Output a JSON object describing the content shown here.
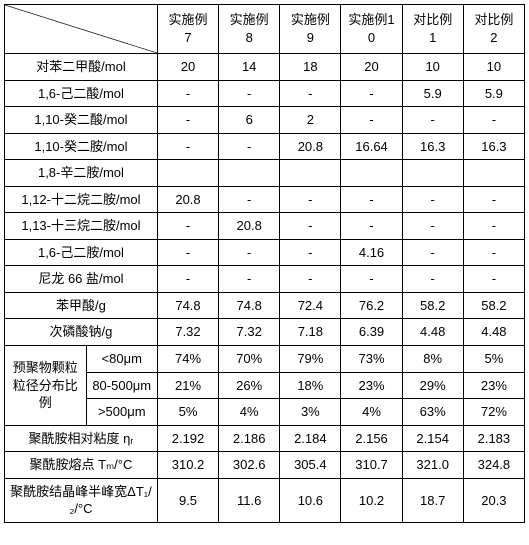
{
  "columns": [
    "实施例7",
    "实施例8",
    "实施例9",
    "实施例10",
    "对比例1",
    "对比例2"
  ],
  "rows": [
    {
      "label": "对苯二甲酸/mol",
      "v": [
        "20",
        "14",
        "18",
        "20",
        "10",
        "10"
      ]
    },
    {
      "label": "1,6-己二酸/mol",
      "v": [
        "-",
        "-",
        "-",
        "-",
        "5.9",
        "5.9"
      ]
    },
    {
      "label": "1,10-癸二酸/mol",
      "v": [
        "-",
        "6",
        "2",
        "-",
        "-",
        "-"
      ]
    },
    {
      "label": "1,10-癸二胺/mol",
      "v": [
        "-",
        "-",
        "20.8",
        "16.64",
        "16.3",
        "16.3"
      ]
    },
    {
      "label": "1,8-辛二胺/mol",
      "v": [
        "",
        "",
        "",
        "",
        "",
        ""
      ]
    },
    {
      "label": "1,12-十二烷二胺/mol",
      "v": [
        "20.8",
        "-",
        "-",
        "-",
        "-",
        "-"
      ]
    },
    {
      "label": "1,13-十三烷二胺/mol",
      "v": [
        "-",
        "20.8",
        "-",
        "-",
        "-",
        "-"
      ]
    },
    {
      "label": "1,6-己二胺/mol",
      "v": [
        "-",
        "-",
        "-",
        "4.16",
        "-",
        "-"
      ]
    },
    {
      "label": "尼龙 66 盐/mol",
      "v": [
        "-",
        "-",
        "-",
        "-",
        "-",
        "-"
      ]
    },
    {
      "label": "苯甲酸/g",
      "v": [
        "74.8",
        "74.8",
        "72.4",
        "76.2",
        "58.2",
        "58.2"
      ]
    },
    {
      "label": "次磷酸钠/g",
      "v": [
        "7.32",
        "7.32",
        "7.18",
        "6.39",
        "4.48",
        "4.48"
      ]
    }
  ],
  "group": {
    "label": "预聚物颗粒粒径分布比例",
    "sub": [
      {
        "label": "<80μm",
        "v": [
          "74%",
          "70%",
          "79%",
          "73%",
          "8%",
          "5%"
        ]
      },
      {
        "label": "80-500μm",
        "v": [
          "21%",
          "26%",
          "18%",
          "23%",
          "29%",
          "23%"
        ]
      },
      {
        "label": ">500μm",
        "v": [
          "5%",
          "4%",
          "3%",
          "4%",
          "63%",
          "72%"
        ]
      }
    ]
  },
  "rows2": [
    {
      "label": "聚酰胺相对粘度 ηᵣ",
      "v": [
        "2.192",
        "2.186",
        "2.184",
        "2.156",
        "2.154",
        "2.183"
      ]
    },
    {
      "label": "聚酰胺熔点 Tₘ/°C",
      "v": [
        "310.2",
        "302.6",
        "305.4",
        "310.7",
        "321.0",
        "324.8"
      ]
    },
    {
      "label": "聚酰胺结晶峰半峰宽ΔT₁/₂/°C",
      "v": [
        "9.5",
        "11.6",
        "10.6",
        "10.2",
        "18.7",
        "20.3"
      ]
    }
  ],
  "style": {
    "border_color": "#000000",
    "background": "#ffffff",
    "font_size": 13,
    "header_font_size": 13,
    "cell_align": "center"
  }
}
